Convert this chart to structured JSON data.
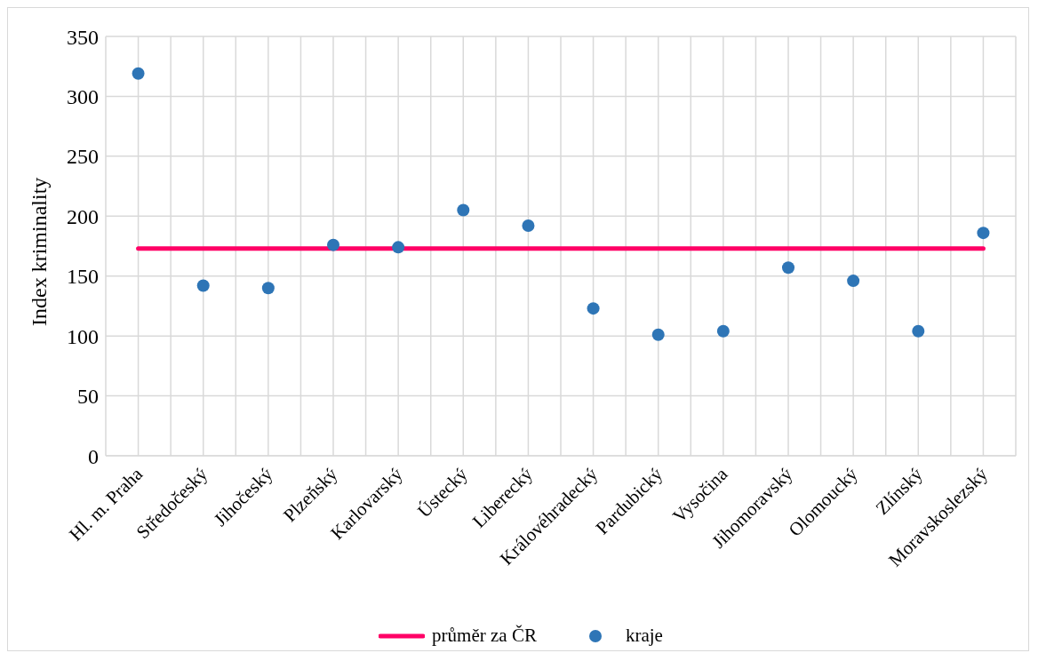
{
  "chart_data": {
    "type": "scatter",
    "ylabel": "Index kriminality",
    "categories": [
      "Hl. m. Praha",
      "Středočeský",
      "Jihočeský",
      "Plzeňský",
      "Karlovarský",
      "Ústecký",
      "Liberecký",
      "Královéhradecký",
      "Pardubický",
      "Vysočina",
      "Jihomoravský",
      "Olomoucký",
      "Zlínský",
      "Moravskoslezský"
    ],
    "series": [
      {
        "type": "line",
        "name": "průměr za ČR",
        "color": "#ff0066",
        "values": [
          173,
          173,
          173,
          173,
          173,
          173,
          173,
          173,
          173,
          173,
          173,
          173,
          173,
          173
        ]
      },
      {
        "name": "kraje",
        "color": "#2e75b6",
        "marker": "circle",
        "values": [
          319,
          142,
          140,
          176,
          174,
          205,
          192,
          123,
          101,
          104,
          157,
          146,
          104,
          186
        ]
      }
    ],
    "ylim": [
      0,
      350
    ],
    "yticks": [
      0,
      50,
      100,
      150,
      200,
      250,
      300,
      350
    ],
    "grid": true,
    "legend": "bottom",
    "line_style": "solid"
  }
}
